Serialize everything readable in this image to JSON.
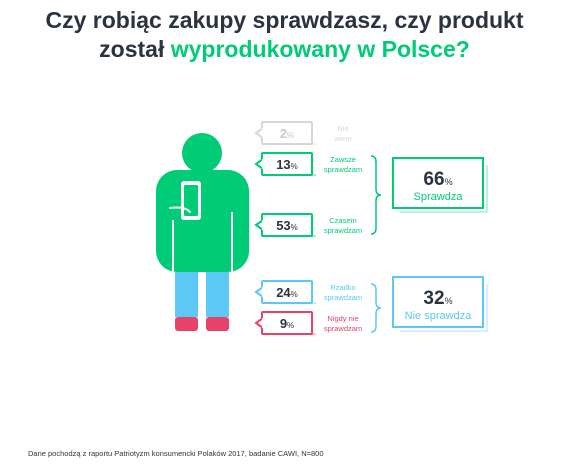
{
  "title": {
    "line1": "Czy robiąc zakupy sprawdzasz, czy produkt",
    "line2_prefix": "został ",
    "line2_highlight": "wyprodukowany w Polsce?"
  },
  "colors": {
    "green": "#00cc77",
    "blue": "#5bc8f5",
    "red": "#e9426a",
    "gray": "#d6d6d6",
    "text": "#2b3340"
  },
  "chart_data": {
    "type": "infographic",
    "unit": "%",
    "items": [
      {
        "label": "Nie wiem",
        "value": 2,
        "color": "#d6d6d6"
      },
      {
        "label": "Zawsze sprawdzam",
        "value": 13,
        "color": "#00cc77"
      },
      {
        "label": "Czasem sprawdzam",
        "value": 53,
        "color": "#00cc77"
      },
      {
        "label": "Rzadko sprawdzam",
        "value": 24,
        "color": "#5bc8f5"
      },
      {
        "label": "Nigdy nie sprawdzam",
        "value": 9,
        "color": "#e9426a"
      }
    ],
    "groups": [
      {
        "label": "Sprawdza",
        "value": 66,
        "color": "#00cc77"
      },
      {
        "label": "Nie sprawdza",
        "value": 32,
        "color": "#5bc8f5"
      }
    ]
  },
  "footnote": "Dane pochodzą z raportu Patriotyzm konsumencki Polaków 2017, badanie CAWI, N=800"
}
